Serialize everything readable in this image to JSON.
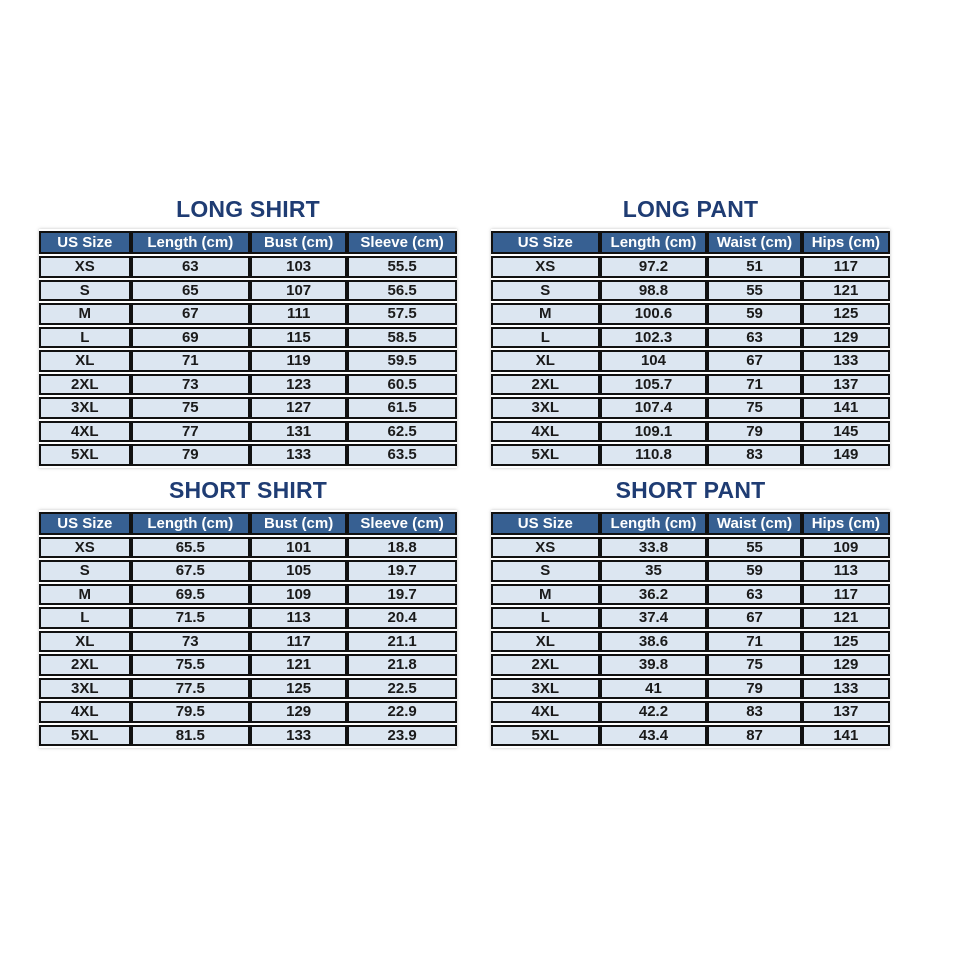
{
  "colors": {
    "page-bg": "#ffffff",
    "title-color": "#1f3c73",
    "header-bg": "#376092",
    "header-text": "#ffffff",
    "row-bg": "#dce6f1",
    "border-color": "#111111",
    "cell-text": "#1a1a1a"
  },
  "tables": [
    {
      "title": "LONG SHIRT",
      "columns": [
        "US Size",
        "Length (cm)",
        "Bust (cm)",
        "Sleeve (cm)"
      ],
      "rows": [
        [
          "XS",
          "63",
          "103",
          "55.5"
        ],
        [
          "S",
          "65",
          "107",
          "56.5"
        ],
        [
          "M",
          "67",
          "111",
          "57.5"
        ],
        [
          "L",
          "69",
          "115",
          "58.5"
        ],
        [
          "XL",
          "71",
          "119",
          "59.5"
        ],
        [
          "2XL",
          "73",
          "123",
          "60.5"
        ],
        [
          "3XL",
          "75",
          "127",
          "61.5"
        ],
        [
          "4XL",
          "77",
          "131",
          "62.5"
        ],
        [
          "5XL",
          "79",
          "133",
          "63.5"
        ]
      ]
    },
    {
      "title": "LONG PANT",
      "columns": [
        "US Size",
        "Length (cm)",
        "Waist (cm)",
        "Hips (cm)"
      ],
      "rows": [
        [
          "XS",
          "97.2",
          "51",
          "117"
        ],
        [
          "S",
          "98.8",
          "55",
          "121"
        ],
        [
          "M",
          "100.6",
          "59",
          "125"
        ],
        [
          "L",
          "102.3",
          "63",
          "129"
        ],
        [
          "XL",
          "104",
          "67",
          "133"
        ],
        [
          "2XL",
          "105.7",
          "71",
          "137"
        ],
        [
          "3XL",
          "107.4",
          "75",
          "141"
        ],
        [
          "4XL",
          "109.1",
          "79",
          "145"
        ],
        [
          "5XL",
          "110.8",
          "83",
          "149"
        ]
      ]
    },
    {
      "title": "SHORT SHIRT",
      "columns": [
        "US Size",
        "Length (cm)",
        "Bust (cm)",
        "Sleeve (cm)"
      ],
      "rows": [
        [
          "XS",
          "65.5",
          "101",
          "18.8"
        ],
        [
          "S",
          "67.5",
          "105",
          "19.7"
        ],
        [
          "M",
          "69.5",
          "109",
          "19.7"
        ],
        [
          "L",
          "71.5",
          "113",
          "20.4"
        ],
        [
          "XL",
          "73",
          "117",
          "21.1"
        ],
        [
          "2XL",
          "75.5",
          "121",
          "21.8"
        ],
        [
          "3XL",
          "77.5",
          "125",
          "22.5"
        ],
        [
          "4XL",
          "79.5",
          "129",
          "22.9"
        ],
        [
          "5XL",
          "81.5",
          "133",
          "23.9"
        ]
      ]
    },
    {
      "title": "SHORT PANT",
      "columns": [
        "US Size",
        "Length (cm)",
        "Waist (cm)",
        "Hips (cm)"
      ],
      "rows": [
        [
          "XS",
          "33.8",
          "55",
          "109"
        ],
        [
          "S",
          "35",
          "59",
          "113"
        ],
        [
          "M",
          "36.2",
          "63",
          "117"
        ],
        [
          "L",
          "37.4",
          "67",
          "121"
        ],
        [
          "XL",
          "38.6",
          "71",
          "125"
        ],
        [
          "2XL",
          "39.8",
          "75",
          "129"
        ],
        [
          "3XL",
          "41",
          "79",
          "133"
        ],
        [
          "4XL",
          "42.2",
          "83",
          "137"
        ],
        [
          "5XL",
          "43.4",
          "87",
          "141"
        ]
      ]
    }
  ]
}
